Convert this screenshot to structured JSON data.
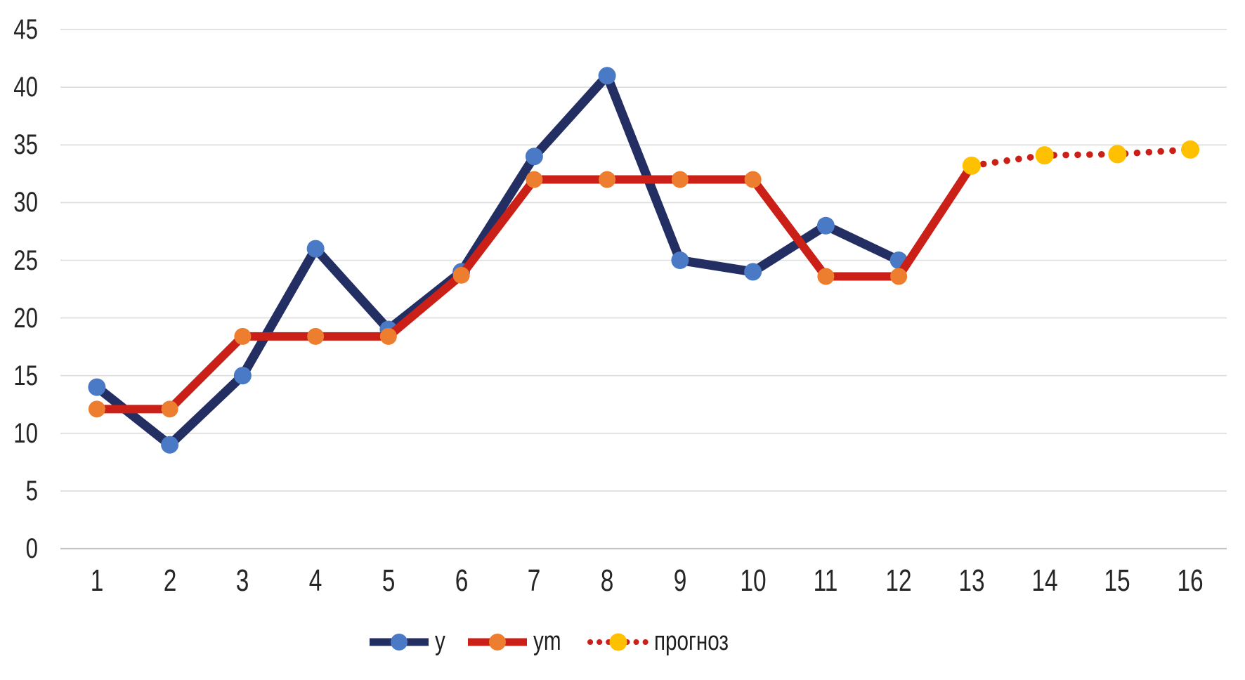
{
  "chart_data": {
    "type": "line",
    "x_categories": [
      "1",
      "2",
      "3",
      "4",
      "5",
      "6",
      "7",
      "8",
      "9",
      "10",
      "11",
      "12",
      "13",
      "14",
      "15",
      "16"
    ],
    "y_tick_labels": [
      "0",
      "5",
      "10",
      "15",
      "20",
      "25",
      "30",
      "35",
      "40",
      "45"
    ],
    "ylim": [
      0,
      45
    ],
    "grid": "horizontal-only",
    "legend_position": "bottom",
    "background_color": "#FFFFFF",
    "gridline_color": "#DCDCDC",
    "axis_line_color": "#C4C4C4",
    "tick_text_color": "#262626",
    "series": [
      {
        "name": "y",
        "type": "line",
        "line_style": "solid",
        "line_color": "#232E63",
        "marker": "circle",
        "marker_color": "#4A7AC6",
        "start_x": 1,
        "values": [
          14,
          9,
          15,
          26,
          19,
          24,
          34,
          41,
          25,
          24,
          28,
          25
        ]
      },
      {
        "name": "ym",
        "type": "line",
        "line_style": "solid",
        "line_color": "#CB2017",
        "marker": "circle",
        "marker_color": "#EE7E2F",
        "start_x": 1,
        "values": [
          12.1,
          12.1,
          18.4,
          18.4,
          18.4,
          23.7,
          32,
          32,
          32,
          32,
          23.6,
          23.6
        ],
        "connects_to_forecast": true
      },
      {
        "name": "прогноз",
        "type": "line",
        "line_style": "dotted",
        "line_color": "#CB2017",
        "marker": "circle",
        "marker_color": "#FFC000",
        "start_x": 13,
        "values": [
          33.2,
          34.1,
          34.2,
          34.6
        ]
      }
    ],
    "legend": [
      {
        "label": "y"
      },
      {
        "label": "ym"
      },
      {
        "label": "прогноз"
      }
    ]
  }
}
